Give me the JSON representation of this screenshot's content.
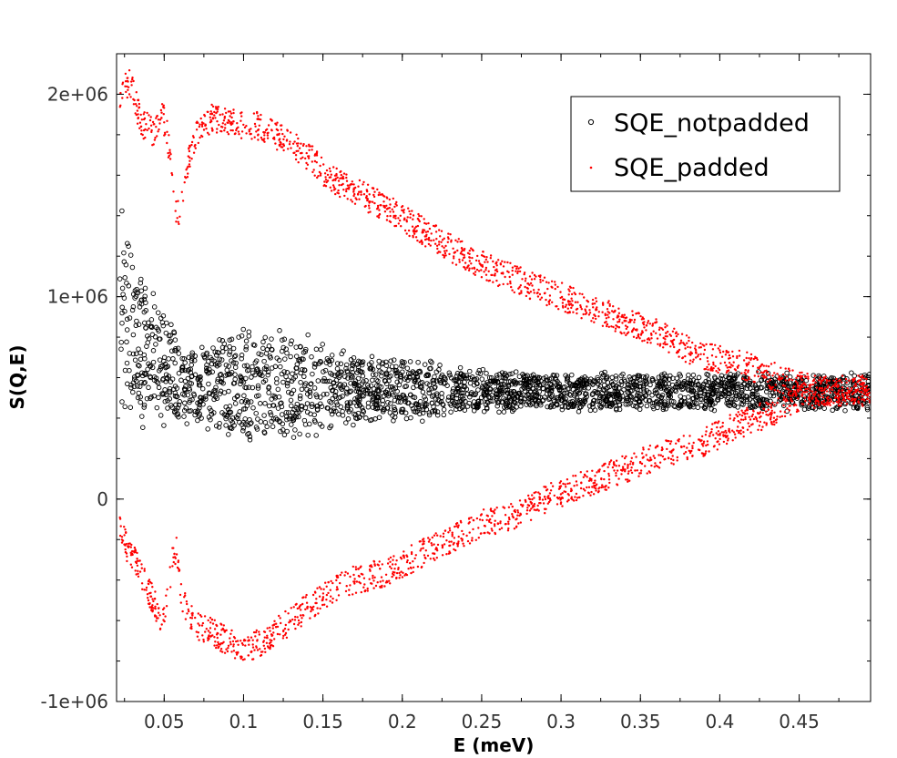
{
  "chart_data": {
    "type": "scatter",
    "xlabel": "E (meV)",
    "ylabel": "S(Q,E)",
    "xlim": [
      0.02,
      0.495
    ],
    "ylim": [
      -1000000,
      2200000
    ],
    "grid": false,
    "legend_position": "top-right",
    "x_ticks": [
      0.05,
      0.1,
      0.15,
      0.2,
      0.25,
      0.3,
      0.35,
      0.4,
      0.45
    ],
    "x_tick_labels": [
      "0.05",
      "0.1",
      "0.15",
      "0.2",
      "0.25",
      "0.3",
      "0.35",
      "0.4",
      "0.45"
    ],
    "y_ticks": [
      -1000000,
      0,
      1000000,
      2000000
    ],
    "y_tick_labels": [
      "-1e+06",
      "0",
      "1e+06",
      "2e+06"
    ],
    "series": [
      {
        "name": "SQE_notpadded",
        "marker": "open-circle",
        "color": "#000000",
        "x": [
          0.022,
          0.025,
          0.028,
          0.031,
          0.034,
          0.037,
          0.04,
          0.043,
          0.046,
          0.049,
          0.052,
          0.055,
          0.058,
          0.061,
          0.065,
          0.07,
          0.08,
          0.09,
          0.1,
          0.11,
          0.12,
          0.13,
          0.14,
          0.15,
          0.16,
          0.17,
          0.18,
          0.19,
          0.2,
          0.21,
          0.22,
          0.23,
          0.24,
          0.25,
          0.26,
          0.27,
          0.28,
          0.29,
          0.3,
          0.31,
          0.32,
          0.33,
          0.34,
          0.35,
          0.36,
          0.37,
          0.38,
          0.39,
          0.4,
          0.41,
          0.42,
          0.43,
          0.44,
          0.45,
          0.46,
          0.47,
          0.48,
          0.49
        ],
        "mean": [
          1000000,
          900000,
          850000,
          800000,
          760000,
          720000,
          700000,
          690000,
          680000,
          650000,
          640000,
          620000,
          600000,
          560000,
          560000,
          560000,
          560000,
          560000,
          560000,
          560000,
          560000,
          560000,
          560000,
          560000,
          540000,
          540000,
          540000,
          540000,
          540000,
          540000,
          540000,
          530000,
          530000,
          530000,
          530000,
          530000,
          530000,
          530000,
          530000,
          530000,
          530000,
          530000,
          530000,
          530000,
          530000,
          530000,
          530000,
          530000,
          530000,
          530000,
          530000,
          530000,
          530000,
          530000,
          530000,
          530000,
          530000,
          530000
        ],
        "half_spread": [
          700000,
          550000,
          500000,
          450000,
          400000,
          380000,
          350000,
          330000,
          320000,
          310000,
          300000,
          300000,
          280000,
          240000,
          200000,
          220000,
          250000,
          280000,
          300000,
          310000,
          310000,
          300000,
          280000,
          250000,
          210000,
          180000,
          170000,
          160000,
          160000,
          160000,
          150000,
          140000,
          130000,
          120000,
          110000,
          105000,
          100000,
          100000,
          100000,
          100000,
          100000,
          100000,
          100000,
          100000,
          100000,
          100000,
          100000,
          100000,
          100000,
          100000,
          100000,
          100000,
          100000,
          100000,
          100000,
          100000,
          100000,
          100000
        ]
      },
      {
        "name": "SQE_padded",
        "marker": "dot",
        "color": "#ff0000",
        "x": [
          0.022,
          0.025,
          0.028,
          0.031,
          0.034,
          0.037,
          0.04,
          0.043,
          0.046,
          0.049,
          0.052,
          0.055,
          0.058,
          0.061,
          0.065,
          0.07,
          0.08,
          0.09,
          0.1,
          0.11,
          0.12,
          0.13,
          0.14,
          0.15,
          0.16,
          0.17,
          0.18,
          0.19,
          0.2,
          0.21,
          0.22,
          0.23,
          0.24,
          0.25,
          0.26,
          0.27,
          0.28,
          0.29,
          0.3,
          0.31,
          0.32,
          0.33,
          0.34,
          0.35,
          0.36,
          0.37,
          0.38,
          0.39,
          0.4,
          0.41,
          0.42,
          0.43,
          0.44,
          0.45,
          0.46,
          0.47,
          0.48,
          0.49
        ],
        "upper_branch": [
          2000000,
          2050000,
          2050000,
          2000000,
          1900000,
          1850000,
          1850000,
          1800000,
          1850000,
          1900000,
          1800000,
          1600000,
          1400000,
          1450000,
          1650000,
          1800000,
          1880000,
          1860000,
          1850000,
          1840000,
          1800000,
          1750000,
          1700000,
          1620000,
          1560000,
          1520000,
          1480000,
          1440000,
          1390000,
          1340000,
          1290000,
          1240000,
          1200000,
          1160000,
          1120000,
          1090000,
          1060000,
          1030000,
          1000000,
          970000,
          940000,
          910000,
          880000,
          850000,
          820000,
          780000,
          740000,
          710000,
          690000,
          670000,
          650000,
          620000,
          590000,
          560000,
          540000,
          540000,
          540000,
          540000
        ],
        "lower_branch": [
          -100000,
          -200000,
          -280000,
          -300000,
          -320000,
          -400000,
          -450000,
          -500000,
          -550000,
          -600000,
          -500000,
          -300000,
          -250000,
          -480000,
          -580000,
          -620000,
          -660000,
          -700000,
          -740000,
          -710000,
          -660000,
          -600000,
          -540000,
          -480000,
          -430000,
          -400000,
          -380000,
          -360000,
          -320000,
          -280000,
          -240000,
          -200000,
          -160000,
          -120000,
          -100000,
          -80000,
          -40000,
          0,
          30000,
          60000,
          90000,
          120000,
          150000,
          180000,
          210000,
          230000,
          250000,
          280000,
          320000,
          360000,
          390000,
          420000,
          460000,
          500000,
          520000,
          530000,
          530000,
          530000
        ]
      }
    ]
  }
}
